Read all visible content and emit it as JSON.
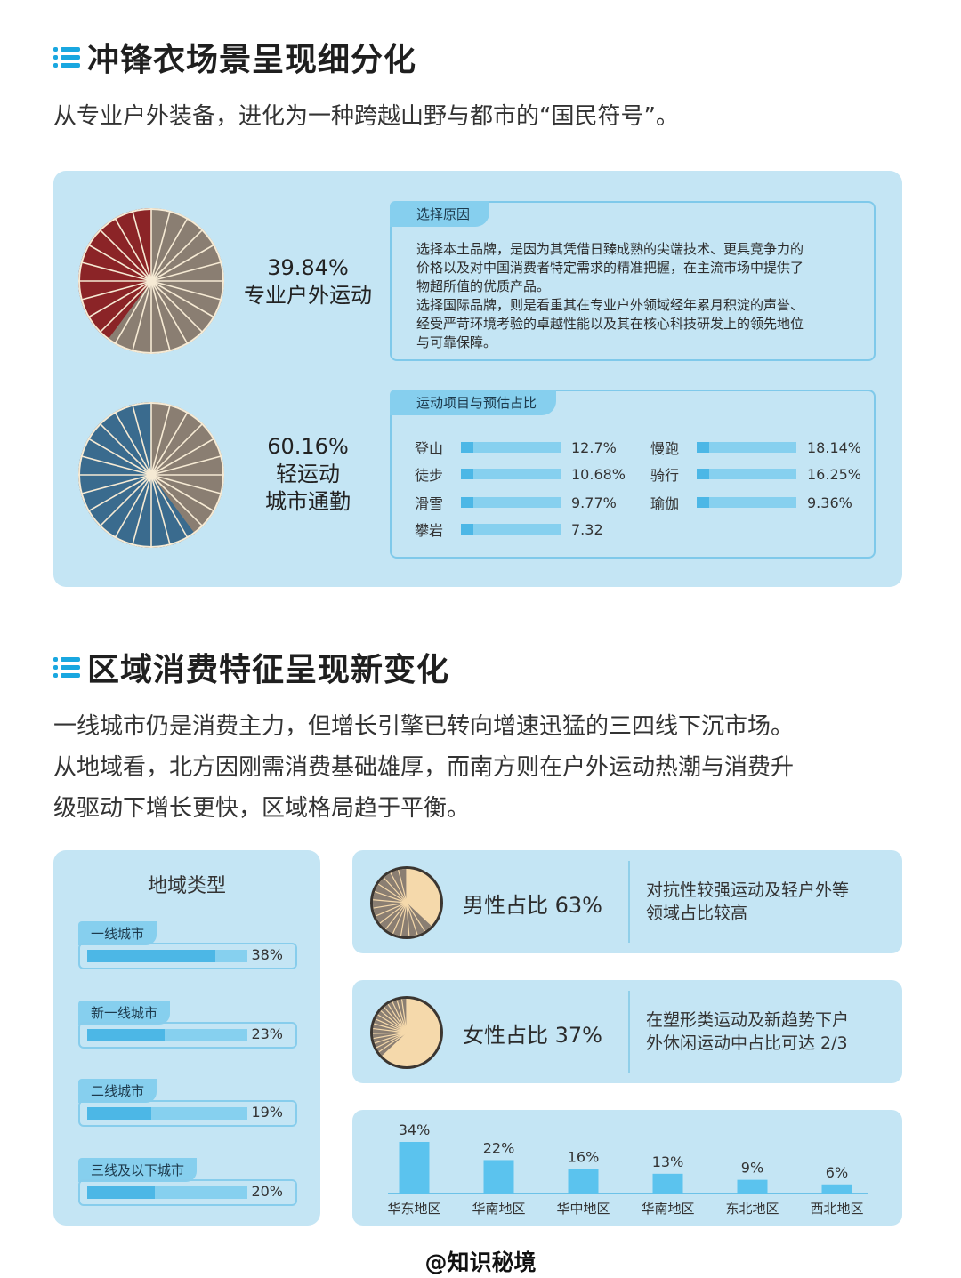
{
  "section1": {
    "title": "冲锋衣场景呈现细分化",
    "lead": "从专业户外装备，进化为一种跨越山野与都市的“国民符号”。"
  },
  "pies": [
    {
      "percent": "39.84%",
      "line1": "专业户外运动",
      "line2": "",
      "share": 39.84,
      "color": "#8b2427"
    },
    {
      "percent": "60.16%",
      "line1": "轻运动",
      "line2": "城市通勤",
      "share": 60.16,
      "color": "#3a6b8e"
    }
  ],
  "reasons": {
    "tag": "选择原因",
    "lines": [
      "选择本土品牌，是因为其凭借日臻成熟的尖端技术、更具竞争力的",
      "价格以及对中国消费者特定需求的精准把握，在主流市场中提供了",
      "物超所值的优质产品。",
      "选择国际品牌，则是看重其在专业户外领域经年累月积淀的声誉、",
      "经受严苛环境考验的卓越性能以及其在核心科技研发上的领先地位",
      "与可靠保障。"
    ]
  },
  "sports": {
    "tag": "运动项目与预估占比",
    "left": [
      {
        "name": "登山",
        "value": "12.7%"
      },
      {
        "name": "徒步",
        "value": "10.68%"
      },
      {
        "name": "滑雪",
        "value": "9.77%"
      },
      {
        "name": "攀岩",
        "value": "7.32"
      }
    ],
    "right": [
      {
        "name": "慢跑",
        "value": "18.14%"
      },
      {
        "name": "骑行",
        "value": "16.25%"
      },
      {
        "name": "瑜伽",
        "value": "9.36%"
      }
    ]
  },
  "section2": {
    "title": "区域消费特征呈现新变化",
    "lead_lines": [
      "一线城市仍是消费主力，但增长引擎已转向增速迅猛的三四线下沉市场。",
      "从地域看，北方因刚需消费基础雄厚，而南方则在户外运动热潮与消费升",
      "级驱动下增长更快，区域格局趋于平衡。"
    ]
  },
  "tiers": {
    "title": "地域类型",
    "items": [
      {
        "label": "一线城市",
        "value": "38%",
        "share": 38
      },
      {
        "label": "新一线城市",
        "value": "23%",
        "share": 23
      },
      {
        "label": "二线城市",
        "value": "19%",
        "share": 19
      },
      {
        "label": "三线及以下城市",
        "value": "20%",
        "share": 20
      }
    ]
  },
  "gender": [
    {
      "main": "男性占比 63%",
      "desc1": "对抗性较强运动及轻户外等",
      "desc2": "领域占比较高",
      "share": 63
    },
    {
      "main": "女性占比 37%",
      "desc1": "在塑形类运动及新趋势下户",
      "desc2": "外休闲运动中占比可达 2/3",
      "share": 37
    }
  ],
  "chart_data": {
    "type": "bar",
    "categories": [
      "华东地区",
      "华南地区",
      "华中地区",
      "华南地区",
      "东北地区",
      "西北地区"
    ],
    "values": [
      34,
      22,
      16,
      13,
      9,
      6
    ],
    "labels": [
      "34%",
      "22%",
      "16%",
      "13%",
      "9%",
      "6%"
    ],
    "ylim": [
      0,
      34
    ],
    "bar_color": "#5bc3ee"
  },
  "footer": "@知识秘境"
}
